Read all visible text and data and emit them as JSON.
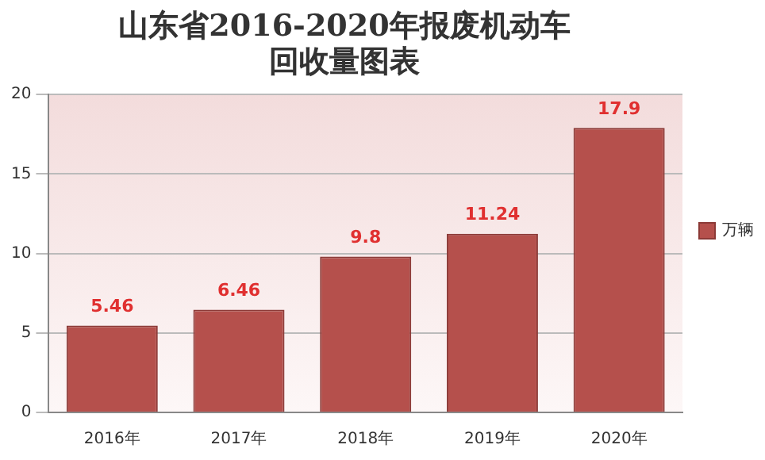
{
  "chart_data": {
    "type": "bar",
    "title": "山东省2016-2020年报废机动车回收量图表",
    "categories": [
      "2016年",
      "2017年",
      "2018年",
      "2019年",
      "2020年"
    ],
    "series": [
      {
        "name": "万辆",
        "color": "#b5504c",
        "values": [
          5.46,
          6.46,
          9.8,
          11.24,
          17.9
        ]
      }
    ],
    "ylim": [
      0,
      20
    ],
    "yticks": [
      0,
      5,
      10,
      15,
      20
    ],
    "grid": "y",
    "legend": "right",
    "data_labels": true
  }
}
